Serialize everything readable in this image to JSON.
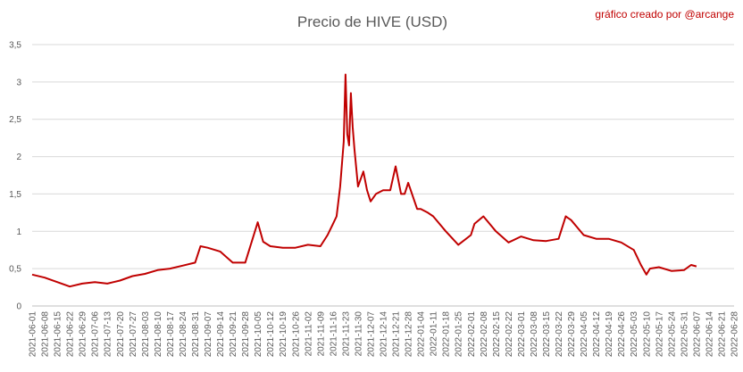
{
  "credit": "gráfico creado por @arcange",
  "colors": {
    "line": "#c00000",
    "grid": "#d9d9d9",
    "text": "#595959",
    "credit": "#c00000"
  },
  "chart_data": {
    "type": "line",
    "title": "Precio de HIVE (USD)",
    "xlabel": "",
    "ylabel": "",
    "ylim": [
      0,
      3.5
    ],
    "yticks": [
      0,
      0.5,
      1,
      1.5,
      2,
      2.5,
      3,
      3.5
    ],
    "ytick_labels": [
      "0",
      "0,5",
      "1",
      "1,5",
      "2",
      "2,5",
      "3",
      "3,5"
    ],
    "xtick_labels": [
      "2021-06-01",
      "2021-06-08",
      "2021-06-15",
      "2021-06-22",
      "2021-06-29",
      "2021-07-06",
      "2021-07-13",
      "2021-07-20",
      "2021-07-27",
      "2021-08-03",
      "2021-08-10",
      "2021-08-17",
      "2021-08-24",
      "2021-08-31",
      "2021-09-07",
      "2021-09-14",
      "2021-09-21",
      "2021-09-28",
      "2021-10-05",
      "2021-10-12",
      "2021-10-19",
      "2021-10-26",
      "2021-11-02",
      "2021-11-09",
      "2021-11-16",
      "2021-11-23",
      "2021-11-30",
      "2021-12-07",
      "2021-12-14",
      "2021-12-21",
      "2021-12-28",
      "2022-01-04",
      "2022-01-11",
      "2022-01-18",
      "2022-01-25",
      "2022-02-01",
      "2022-02-08",
      "2022-02-15",
      "2022-02-22",
      "2022-03-01",
      "2022-03-08",
      "2022-03-15",
      "2022-03-22",
      "2022-03-29",
      "2022-04-05",
      "2022-04-12",
      "2022-04-19",
      "2022-04-26",
      "2022-05-03",
      "2022-05-10",
      "2022-05-17",
      "2022-05-24",
      "2022-05-31",
      "2022-06-07",
      "2022-06-14",
      "2022-06-21",
      "2022-06-28"
    ],
    "series": [
      {
        "x": [
          "2021-06-01",
          "2021-06-08",
          "2021-06-15",
          "2021-06-22",
          "2021-06-29",
          "2021-07-06",
          "2021-07-13",
          "2021-07-20",
          "2021-07-27",
          "2021-08-03",
          "2021-08-10",
          "2021-08-17",
          "2021-08-24",
          "2021-08-31",
          "2021-09-03",
          "2021-09-07",
          "2021-09-14",
          "2021-09-21",
          "2021-09-28",
          "2021-10-05",
          "2021-10-08",
          "2021-10-12",
          "2021-10-19",
          "2021-10-26",
          "2021-11-02",
          "2021-11-09",
          "2021-11-13",
          "2021-11-16",
          "2021-11-18",
          "2021-11-20",
          "2021-11-22",
          "2021-11-23",
          "2021-11-24",
          "2021-11-25",
          "2021-11-26",
          "2021-11-27",
          "2021-11-28",
          "2021-11-30",
          "2021-12-03",
          "2021-12-05",
          "2021-12-07",
          "2021-12-10",
          "2021-12-14",
          "2021-12-18",
          "2021-12-21",
          "2021-12-24",
          "2021-12-26",
          "2021-12-28",
          "2022-01-02",
          "2022-01-04",
          "2022-01-08",
          "2022-01-11",
          "2022-01-18",
          "2022-01-25",
          "2022-02-01",
          "2022-02-03",
          "2022-02-08",
          "2022-02-15",
          "2022-02-22",
          "2022-03-01",
          "2022-03-08",
          "2022-03-15",
          "2022-03-22",
          "2022-03-26",
          "2022-03-29",
          "2022-04-05",
          "2022-04-12",
          "2022-04-19",
          "2022-04-26",
          "2022-05-03",
          "2022-05-07",
          "2022-05-10",
          "2022-05-12",
          "2022-05-17",
          "2022-05-24",
          "2022-05-31",
          "2022-06-04",
          "2022-06-07"
        ],
        "values": [
          0.42,
          0.38,
          0.32,
          0.26,
          0.3,
          0.32,
          0.3,
          0.34,
          0.4,
          0.43,
          0.48,
          0.5,
          0.54,
          0.58,
          0.8,
          0.78,
          0.73,
          0.58,
          0.58,
          1.12,
          0.86,
          0.8,
          0.78,
          0.78,
          0.82,
          0.8,
          0.95,
          1.1,
          1.2,
          1.6,
          2.2,
          3.1,
          2.3,
          2.15,
          2.85,
          2.4,
          2.1,
          1.6,
          1.8,
          1.55,
          1.4,
          1.5,
          1.55,
          1.55,
          1.87,
          1.5,
          1.5,
          1.65,
          1.3,
          1.3,
          1.25,
          1.2,
          1.0,
          0.82,
          0.95,
          1.1,
          1.2,
          1.0,
          0.85,
          0.93,
          0.88,
          0.87,
          0.9,
          1.2,
          1.15,
          0.95,
          0.9,
          0.9,
          0.85,
          0.75,
          0.55,
          0.42,
          0.5,
          0.52,
          0.47,
          0.48,
          0.55,
          0.53
        ]
      }
    ]
  }
}
